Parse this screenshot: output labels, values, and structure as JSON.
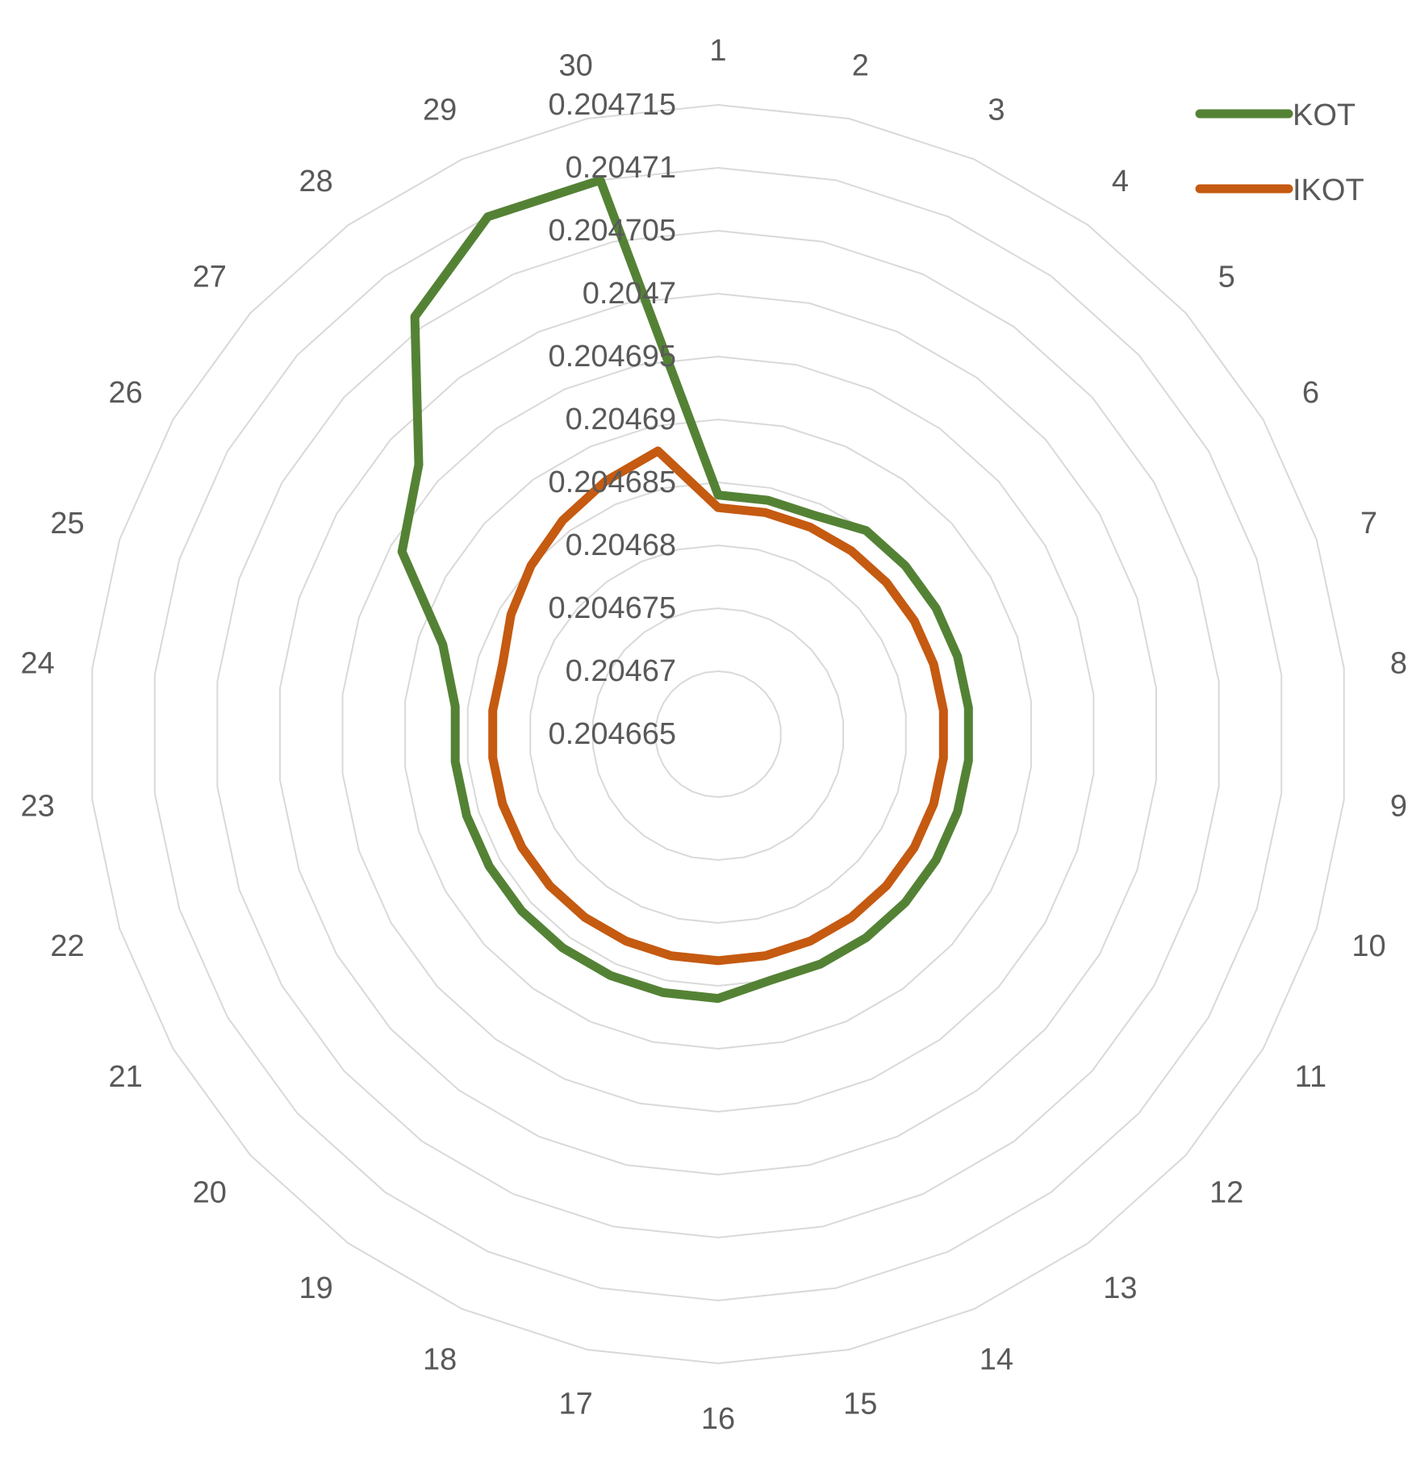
{
  "chart_data": {
    "type": "radar",
    "categories": [
      "1",
      "2",
      "3",
      "4",
      "5",
      "6",
      "7",
      "8",
      "9",
      "10",
      "11",
      "12",
      "13",
      "14",
      "15",
      "16",
      "17",
      "18",
      "19",
      "20",
      "21",
      "22",
      "23",
      "24",
      "25",
      "26",
      "27",
      "28",
      "29",
      "30"
    ],
    "r_ticks": [
      "0.204665",
      "0.20467",
      "0.204675",
      "0.20468",
      "0.204685",
      "0.20469",
      "0.204695",
      "0.2047",
      "0.204705",
      "0.20471",
      "0.204715"
    ],
    "rlim": [
      0.204665,
      0.204715
    ],
    "grid": true,
    "legend_position": "top-right",
    "series": [
      {
        "name": "KOT",
        "color": "#548235",
        "values": [
          0.204684,
          0.204684,
          0.204684,
          0.204685,
          0.204685,
          0.204685,
          0.204685,
          0.204685,
          0.204685,
          0.204685,
          0.204685,
          0.204685,
          0.204685,
          0.204685,
          0.204685,
          0.204686,
          0.204686,
          0.204686,
          0.204686,
          0.204686,
          0.204686,
          0.204686,
          0.204686,
          0.204686,
          0.204688,
          0.204694,
          0.204697,
          0.204706,
          0.20471,
          0.20471
        ]
      },
      {
        "name": "IKOT",
        "color": "#C55A11",
        "values": [
          0.204683,
          0.204683,
          0.204683,
          0.204683,
          0.204683,
          0.204683,
          0.204683,
          0.204683,
          0.204683,
          0.204683,
          0.204683,
          0.204683,
          0.204683,
          0.204683,
          0.204683,
          0.204683,
          0.204683,
          0.204683,
          0.204683,
          0.204683,
          0.204683,
          0.204683,
          0.204683,
          0.204683,
          0.204683,
          0.204684,
          0.204685,
          0.204686,
          0.204687,
          0.204688
        ]
      }
    ]
  }
}
